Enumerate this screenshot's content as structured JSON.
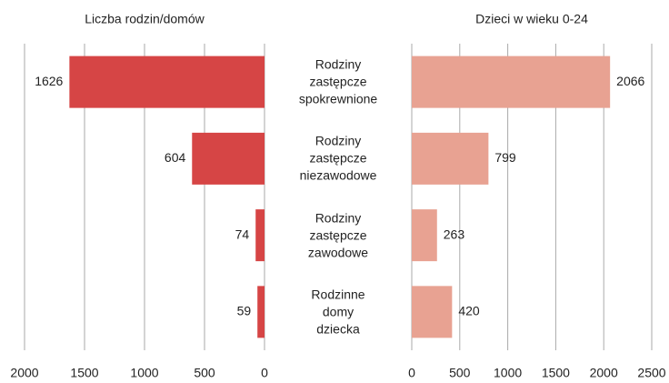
{
  "chart_data": [
    {
      "type": "bar",
      "orientation": "horizontal",
      "title": "Liczba rodzin/domów",
      "categories": [
        "Rodziny zastępcze spokrewnione",
        "Rodziny zastępcze niezawodowe",
        "Rodziny zastępcze zawodowe",
        "Rodzinne domy dziecka"
      ],
      "values": [
        1626,
        604,
        74,
        59
      ],
      "color": "#d64545",
      "xlim": [
        2000,
        0
      ],
      "xticks": [
        2000,
        1500,
        1000,
        500,
        0
      ],
      "grid": true
    },
    {
      "type": "bar",
      "orientation": "horizontal",
      "title": "Dzieci w wieku 0-24",
      "values": [
        2066,
        799,
        263,
        420
      ],
      "color": "#e8a292",
      "xlim": [
        0,
        2500
      ],
      "xticks": [
        0,
        500,
        1000,
        1500,
        2000,
        2500
      ],
      "grid": true
    }
  ]
}
